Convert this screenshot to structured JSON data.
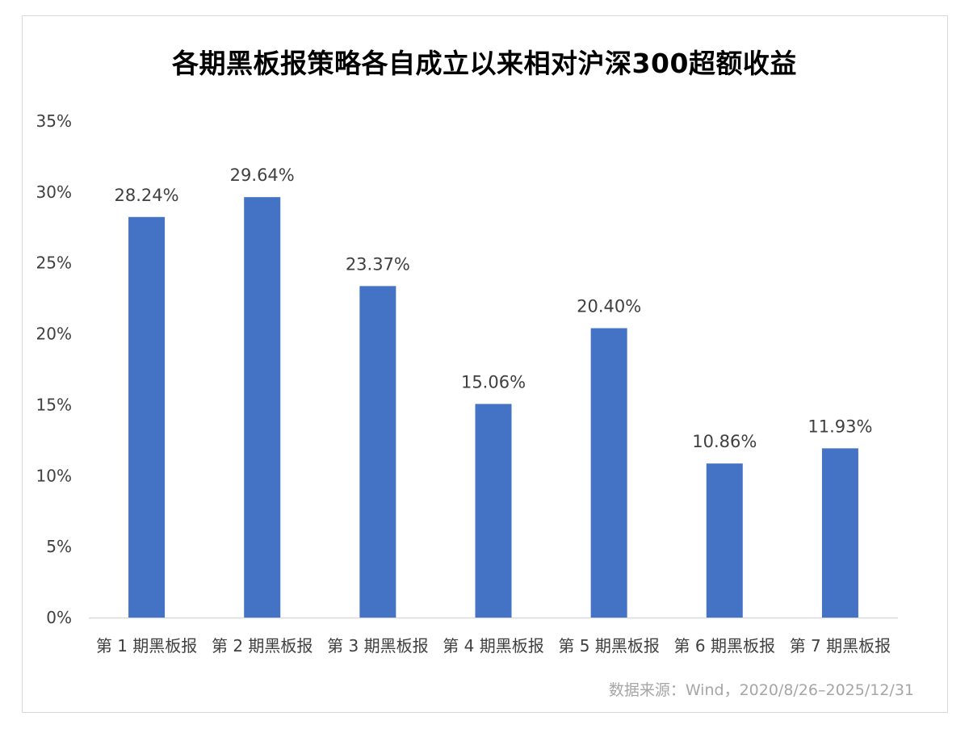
{
  "chart_data": {
    "type": "bar",
    "title": "各期黑板报策略各自成立以来相对沪深300超额收益",
    "categories": [
      "第 1 期黑板报",
      "第 2 期黑板报",
      "第 3 期黑板报",
      "第 4 期黑板报",
      "第 5 期黑板报",
      "第 6 期黑板报",
      "第 7 期黑板报"
    ],
    "values": [
      28.24,
      29.64,
      23.37,
      15.06,
      20.4,
      10.86,
      11.93
    ],
    "data_labels": [
      "28.24%",
      "29.64%",
      "23.37%",
      "15.06%",
      "20.40%",
      "10.86%",
      "11.93%"
    ],
    "y_ticks": [
      "0%",
      "5%",
      "10%",
      "15%",
      "20%",
      "25%",
      "30%",
      "35%"
    ],
    "ylim": [
      0,
      35
    ],
    "y_unit": "%",
    "grid": false,
    "bar_color": "#4472c4",
    "source": "数据来源：Wind，2020/8/26–2025/12/31"
  }
}
